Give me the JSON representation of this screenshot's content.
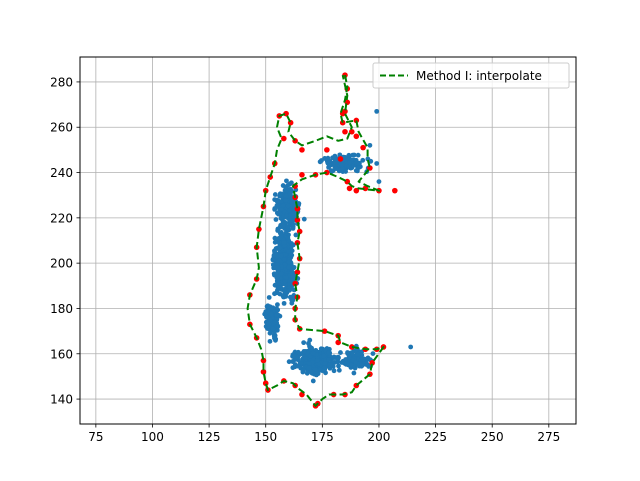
{
  "chart_data": {
    "type": "scatter",
    "title": "",
    "xlabel": "",
    "ylabel": "",
    "xlim": [
      68,
      287
    ],
    "ylim": [
      129,
      291
    ],
    "xticks": [
      75,
      100,
      125,
      150,
      175,
      200,
      225,
      250,
      275
    ],
    "yticks": [
      140,
      160,
      180,
      200,
      220,
      240,
      260,
      280
    ],
    "grid": true,
    "legend_placement": "top-right",
    "colors": {
      "points": "#1f77b4",
      "boundary_points": "#ff0000",
      "curve": "#008000"
    },
    "series": [
      {
        "name": "Method I: interpolate",
        "kind": "line",
        "style": "dashed",
        "points": [
          [
            185,
            283
          ],
          [
            186,
            278
          ],
          [
            185,
            272
          ],
          [
            183,
            266
          ],
          [
            184,
            262
          ],
          [
            190,
            263
          ],
          [
            191,
            258
          ],
          [
            195,
            251
          ],
          [
            195,
            246
          ],
          [
            196,
            242
          ],
          [
            191,
            236
          ],
          [
            195,
            234
          ],
          [
            200,
            232
          ],
          [
            191,
            233
          ],
          [
            188,
            234
          ],
          [
            186,
            236
          ],
          [
            182,
            238
          ],
          [
            177,
            240
          ],
          [
            172,
            239
          ],
          [
            166,
            237
          ],
          [
            162,
            234
          ],
          [
            163,
            229
          ],
          [
            164,
            224
          ],
          [
            164,
            219
          ],
          [
            165,
            214
          ],
          [
            164,
            209
          ],
          [
            165,
            202
          ],
          [
            164,
            196
          ],
          [
            163,
            191
          ],
          [
            164,
            185
          ],
          [
            163,
            180
          ],
          [
            163,
            175
          ],
          [
            165,
            171
          ],
          [
            176,
            170
          ],
          [
            182,
            168
          ],
          [
            183,
            165
          ],
          [
            188,
            163
          ],
          [
            194,
            162
          ],
          [
            199,
            162
          ],
          [
            202,
            163
          ],
          [
            197,
            156
          ],
          [
            196,
            151
          ],
          [
            190,
            146
          ],
          [
            188,
            143
          ],
          [
            184,
            142
          ],
          [
            178,
            142
          ],
          [
            175,
            140
          ],
          [
            172,
            137
          ],
          [
            168,
            142
          ],
          [
            164,
            145
          ],
          [
            162,
            147
          ],
          [
            158,
            148
          ],
          [
            155,
            146
          ],
          [
            151,
            144
          ],
          [
            150,
            147
          ],
          [
            149,
            152
          ],
          [
            149,
            157
          ],
          [
            148,
            162
          ],
          [
            146,
            167
          ],
          [
            143,
            173
          ],
          [
            142,
            180
          ],
          [
            143,
            186
          ],
          [
            146,
            193
          ],
          [
            147,
            198
          ],
          [
            146,
            207
          ],
          [
            147,
            215
          ],
          [
            149,
            225
          ],
          [
            150,
            232
          ],
          [
            152,
            238
          ],
          [
            154,
            244
          ],
          [
            155,
            250
          ],
          [
            157,
            255
          ],
          [
            155,
            260
          ],
          [
            156,
            265
          ],
          [
            159,
            266
          ],
          [
            161,
            262
          ],
          [
            160,
            258
          ],
          [
            163,
            254
          ],
          [
            166,
            252
          ],
          [
            172,
            254
          ],
          [
            177,
            256
          ],
          [
            182,
            254
          ],
          [
            186,
            255
          ],
          [
            188,
            260
          ],
          [
            185,
            266
          ],
          [
            186,
            274
          ],
          [
            184,
            283
          ]
        ]
      },
      {
        "kind": "scatter",
        "role": "boundary",
        "points": [
          [
            185,
            283
          ],
          [
            186,
            277
          ],
          [
            186,
            271
          ],
          [
            184,
            266
          ],
          [
            184,
            262
          ],
          [
            185,
            258
          ],
          [
            190,
            256
          ],
          [
            193,
            251
          ],
          [
            196,
            242
          ],
          [
            194,
            233
          ],
          [
            200,
            232
          ],
          [
            207,
            232
          ],
          [
            190,
            232
          ],
          [
            187,
            233
          ],
          [
            186,
            236
          ],
          [
            177,
            240
          ],
          [
            172,
            239
          ],
          [
            166,
            239
          ],
          [
            163,
            234
          ],
          [
            163,
            229
          ],
          [
            164,
            224
          ],
          [
            164,
            219
          ],
          [
            165,
            214
          ],
          [
            164,
            209
          ],
          [
            165,
            202
          ],
          [
            164,
            196
          ],
          [
            163,
            191
          ],
          [
            164,
            185
          ],
          [
            163,
            180
          ],
          [
            163,
            175
          ],
          [
            165,
            171
          ],
          [
            176,
            170
          ],
          [
            182,
            168
          ],
          [
            182,
            165
          ],
          [
            188,
            163
          ],
          [
            194,
            162
          ],
          [
            199,
            162
          ],
          [
            202,
            163
          ],
          [
            197,
            156
          ],
          [
            196,
            151
          ],
          [
            190,
            146
          ],
          [
            185,
            142
          ],
          [
            180,
            142
          ],
          [
            173,
            138
          ],
          [
            172,
            137
          ],
          [
            166,
            142
          ],
          [
            163,
            146
          ],
          [
            158,
            148
          ],
          [
            151,
            144
          ],
          [
            150,
            147
          ],
          [
            149,
            152
          ],
          [
            149,
            157
          ],
          [
            146,
            167
          ],
          [
            143,
            173
          ],
          [
            143,
            186
          ],
          [
            146,
            193
          ],
          [
            146,
            207
          ],
          [
            147,
            215
          ],
          [
            149,
            225
          ],
          [
            150,
            232
          ],
          [
            152,
            238
          ],
          [
            154,
            244
          ],
          [
            158,
            255
          ],
          [
            156,
            265
          ],
          [
            159,
            266
          ],
          [
            161,
            262
          ],
          [
            163,
            254
          ],
          [
            166,
            250
          ],
          [
            177,
            250
          ],
          [
            183,
            246
          ],
          [
            188,
            258
          ],
          [
            190,
            263
          ],
          [
            185,
            267
          ]
        ]
      },
      {
        "kind": "scatter",
        "role": "data",
        "outliers": [
          [
            199,
            267
          ],
          [
            214,
            163
          ],
          [
            196,
            252
          ],
          [
            199,
            244
          ],
          [
            200,
            236
          ]
        ],
        "blobs": [
          {
            "center": [
              158,
              200
            ],
            "spread": [
              4.5,
              14
            ],
            "count": 420
          },
          {
            "center": [
              160,
              225
            ],
            "spread": [
              4.5,
              8
            ],
            "count": 260
          },
          {
            "center": [
              172,
              157
            ],
            "spread": [
              9,
              6
            ],
            "count": 330
          },
          {
            "center": [
              190,
              157
            ],
            "spread": [
              6,
              4
            ],
            "count": 120
          },
          {
            "center": [
              185,
              244
            ],
            "spread": [
              9,
              3.5
            ],
            "count": 130
          },
          {
            "center": [
              153,
              175
            ],
            "spread": [
              3.5,
              7
            ],
            "count": 120
          }
        ]
      }
    ]
  }
}
